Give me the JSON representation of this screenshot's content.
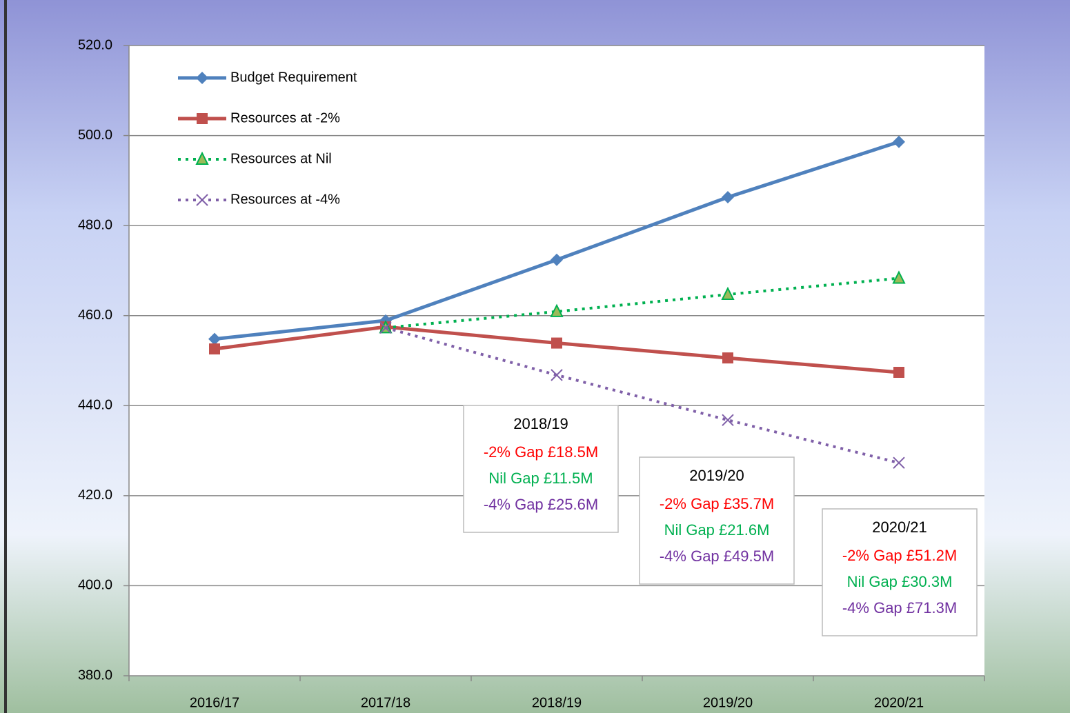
{
  "chart_data": {
    "type": "line",
    "categories": [
      "2016/17",
      "2017/18",
      "2018/19",
      "2019/20",
      "2020/21"
    ],
    "series": [
      {
        "name": "Budget Requirement",
        "color": "#4f81bd",
        "dash": false,
        "marker": "diamond",
        "values": [
          454.8,
          458.9,
          472.4,
          486.3,
          498.6
        ]
      },
      {
        "name": "Resources at -2%",
        "color": "#c0504d",
        "dash": false,
        "marker": "square",
        "values": [
          452.6,
          457.5,
          453.9,
          450.6,
          447.4
        ]
      },
      {
        "name": "Resources at Nil",
        "color": "#00b050",
        "dash": true,
        "marker": "triangle",
        "values": [
          null,
          457.3,
          460.9,
          464.7,
          468.3
        ]
      },
      {
        "name": "Resources at -4%",
        "color": "#7f5fa8",
        "dash": true,
        "marker": "x",
        "values": [
          null,
          457.3,
          446.8,
          436.8,
          427.3
        ]
      }
    ],
    "ylim": [
      380,
      520
    ],
    "yticks": [
      {
        "value": 380,
        "label": "380.0"
      },
      {
        "value": 400,
        "label": "400.0"
      },
      {
        "value": 420,
        "label": "420.0"
      },
      {
        "value": 440,
        "label": "440.0"
      },
      {
        "value": 460,
        "label": "460.0"
      },
      {
        "value": 480,
        "label": "480.0"
      },
      {
        "value": 500,
        "label": "500.0"
      },
      {
        "value": 520,
        "label": "520.0"
      }
    ],
    "grid": true,
    "legend": "top-left",
    "annotations": [
      {
        "title": "2018/19",
        "lines": [
          {
            "text": "-2% Gap £18.5M",
            "color": "#ff0000"
          },
          {
            "text": "Nil Gap £11.5M",
            "color": "#00b050"
          },
          {
            "text": "-4% Gap £25.6M",
            "color": "#7030a0"
          }
        ]
      },
      {
        "title": "2019/20",
        "lines": [
          {
            "text": "-2% Gap £35.7M",
            "color": "#ff0000"
          },
          {
            "text": "Nil Gap £21.6M",
            "color": "#00b050"
          },
          {
            "text": "-4% Gap £49.5M",
            "color": "#7030a0"
          }
        ]
      },
      {
        "title": "2020/21",
        "lines": [
          {
            "text": "-2% Gap £51.2M",
            "color": "#ff0000"
          },
          {
            "text": "Nil Gap £30.3M",
            "color": "#00b050"
          },
          {
            "text": "-4% Gap £71.3M",
            "color": "#7030a0"
          }
        ]
      }
    ]
  }
}
